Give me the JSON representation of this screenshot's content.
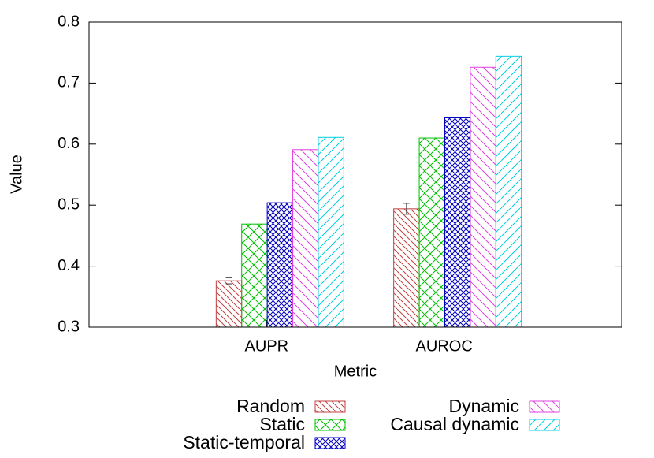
{
  "chart_data": {
    "type": "bar",
    "x_label": "Metric",
    "y_label": "Value",
    "categories": [
      "AUPR",
      "AUROC"
    ],
    "ylim": [
      0.3,
      0.8
    ],
    "yticks": [
      0.3,
      0.4,
      0.5,
      0.6,
      0.7,
      0.8
    ],
    "series": [
      {
        "name": "Random",
        "color": "#c04040",
        "values": [
          0.376,
          0.494
        ],
        "errors": [
          0.005,
          0.009
        ]
      },
      {
        "name": "Static",
        "color": "#00c000",
        "values": [
          0.469,
          0.61
        ]
      },
      {
        "name": "Static-temporal",
        "color": "#0000c0",
        "values": [
          0.504,
          0.643
        ]
      },
      {
        "name": "Dynamic",
        "color": "#e040e0",
        "values": [
          0.591,
          0.726
        ]
      },
      {
        "name": "Causal dynamic",
        "color": "#00d0e0",
        "values": [
          0.611,
          0.744
        ]
      }
    ]
  }
}
